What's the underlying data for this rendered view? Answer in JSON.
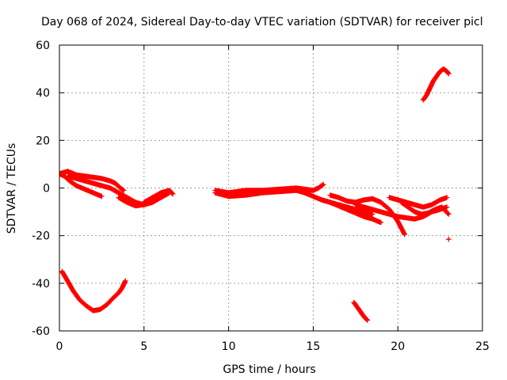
{
  "chart_data": {
    "type": "scatter",
    "title": "Day 068 of 2024, Sidereal Day-to-day VTEC variation (SDTVAR) for receiver picl",
    "xlabel": "GPS time / hours",
    "ylabel": "SDTVAR / TECUs",
    "xlim": [
      0,
      25
    ],
    "ylim": [
      -60,
      60
    ],
    "xticks": [
      0,
      5,
      10,
      15,
      20,
      25
    ],
    "xtick_labels": [
      "0",
      "5",
      "10",
      "15",
      "20",
      "25"
    ],
    "yticks": [
      -60,
      -40,
      -20,
      0,
      20,
      40,
      60
    ],
    "ytick_labels": [
      "-60",
      "-40",
      "-20",
      "0",
      "20",
      "40",
      "60"
    ],
    "grid": true,
    "marker": "+",
    "series": [
      {
        "name": "early-positive-arc",
        "color": "#ff0000",
        "x": [
          0.0,
          0.3,
          0.6,
          1.0,
          1.5,
          2.0,
          2.5
        ],
        "y": [
          6,
          5,
          3,
          1,
          -0.5,
          -2,
          -3.5
        ]
      },
      {
        "name": "morning-band-upper",
        "color": "#ff0000",
        "x": [
          0.0,
          0.5,
          1.0,
          1.5,
          2.0,
          2.5,
          3.0,
          3.3,
          3.6,
          3.8
        ],
        "y": [
          6,
          7,
          5.5,
          5,
          4.5,
          4,
          3,
          2,
          0,
          -1
        ]
      },
      {
        "name": "morning-band-lower",
        "color": "#ff0000",
        "x": [
          0.5,
          1.0,
          1.5,
          2.0,
          2.5,
          3.0,
          3.5,
          4.0,
          4.5,
          5.0
        ],
        "y": [
          5,
          4,
          3,
          2,
          1,
          0,
          -2,
          -4,
          -6,
          -7
        ]
      },
      {
        "name": "morning-dip-loop",
        "color": "#ff0000",
        "x": [
          3.5,
          4.0,
          4.5,
          5.0,
          5.5,
          6.0,
          6.5
        ],
        "y": [
          -4,
          -6,
          -7.5,
          -7,
          -6,
          -4,
          -2
        ]
      },
      {
        "name": "morning-cluster",
        "color": "#ff0000",
        "x": [
          5.0,
          5.5,
          6.0,
          6.5,
          6.7
        ],
        "y": [
          -6,
          -4,
          -2,
          -1,
          -2.5
        ]
      },
      {
        "name": "negative-bowl",
        "color": "#ff0000",
        "x": [
          0.15,
          0.4,
          0.8,
          1.2,
          1.6,
          2.0,
          2.4,
          2.8,
          3.2,
          3.5,
          3.7,
          3.9
        ],
        "y": [
          -35,
          -38,
          -43,
          -47,
          -49.5,
          -51.5,
          -51,
          -49,
          -46,
          -44,
          -42,
          -39
        ]
      },
      {
        "name": "midday-band-upper",
        "color": "#ff0000",
        "x": [
          9.2,
          10.0,
          11.0,
          12.0,
          13.0,
          14.0,
          14.5,
          15.0,
          15.3,
          15.6
        ],
        "y": [
          -1,
          -2,
          -1,
          -1,
          -0.5,
          0,
          -0.5,
          -1,
          0,
          1.5
        ]
      },
      {
        "name": "midday-band-lower",
        "color": "#ff0000",
        "x": [
          9.2,
          10.0,
          11.0,
          12.0,
          13.0,
          14.0,
          14.5,
          15.0,
          15.5,
          16.0,
          17.0,
          18.0,
          18.5
        ],
        "y": [
          -2,
          -3.5,
          -3,
          -2,
          -1.5,
          -1,
          -2,
          -3.5,
          -5,
          -6,
          -8,
          -10,
          -11
        ]
      },
      {
        "name": "afternoon-branch-1",
        "color": "#ff0000",
        "x": [
          15.5,
          16.0,
          16.5,
          17.0,
          17.5,
          18.0,
          18.5,
          19.0
        ],
        "y": [
          -5,
          -6,
          -7.5,
          -9,
          -10.5,
          -12,
          -13,
          -14.5
        ]
      },
      {
        "name": "afternoon-branch-2",
        "color": "#ff0000",
        "x": [
          16.0,
          16.5,
          17.0,
          17.5,
          18.0,
          18.5,
          19.0,
          19.5,
          20.0,
          20.4
        ],
        "y": [
          -3,
          -4,
          -5.5,
          -6,
          -5,
          -4.5,
          -6,
          -9,
          -14,
          -19.5
        ]
      },
      {
        "name": "afternoon-branch-3",
        "color": "#ff0000",
        "x": [
          17.5,
          18.0,
          18.5,
          19.0,
          19.5,
          20.0,
          20.5,
          21.0,
          21.5,
          22.0,
          22.5,
          22.9
        ],
        "y": [
          -7,
          -8,
          -9,
          -10,
          -11,
          -12,
          -12.5,
          -13,
          -12,
          -10,
          -9,
          -8
        ]
      },
      {
        "name": "evening-band",
        "color": "#ff0000",
        "x": [
          20.2,
          20.6,
          21.0,
          21.4,
          21.8,
          22.2,
          22.6,
          23.0
        ],
        "y": [
          -6,
          -8,
          -10,
          -11,
          -10.5,
          -9,
          -8,
          -11
        ]
      },
      {
        "name": "evening-cluster",
        "color": "#ff0000",
        "x": [
          19.5,
          20.0,
          20.5,
          21.0,
          21.5,
          22.0,
          22.5,
          22.9
        ],
        "y": [
          -4,
          -5,
          -6,
          -7,
          -8,
          -7,
          -5,
          -4
        ]
      },
      {
        "name": "descending-segment",
        "color": "#ff0000",
        "x": [
          17.4,
          17.6,
          17.8,
          18.0,
          18.2
        ],
        "y": [
          -48,
          -50,
          -52,
          -54,
          -55.5
        ]
      },
      {
        "name": "late-rise",
        "color": "#ff0000",
        "x": [
          21.5,
          21.7,
          21.9,
          22.1,
          22.3,
          22.5,
          22.7,
          22.9,
          23.0
        ],
        "y": [
          37,
          39,
          42,
          45,
          47,
          49,
          50,
          49,
          48
        ]
      },
      {
        "name": "outlier",
        "color": "#ff0000",
        "x": [
          23.0
        ],
        "y": [
          -21.5
        ]
      }
    ]
  }
}
